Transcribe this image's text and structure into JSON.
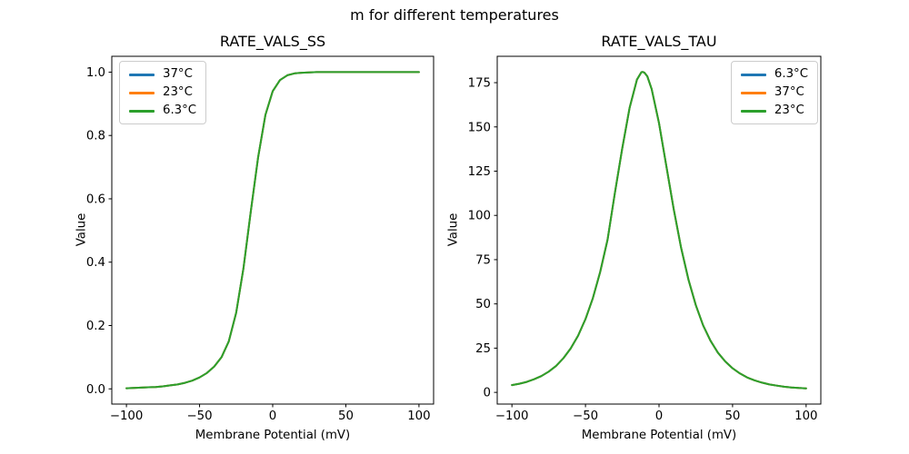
{
  "figure": {
    "suptitle": "m for different temperatures"
  },
  "chart_data": [
    {
      "type": "line",
      "title": "RATE_VALS_SS",
      "xlabel": "Membrane Potential (mV)",
      "ylabel": "Value",
      "xlim": [
        -110,
        110
      ],
      "ylim": [
        -0.048,
        1.05
      ],
      "xticks": [
        -100,
        -50,
        0,
        50,
        100
      ],
      "xtick_labels": [
        "−100",
        "−50",
        "0",
        "50",
        "100"
      ],
      "yticks": [
        0,
        0.2,
        0.4,
        0.6,
        0.8,
        1
      ],
      "ytick_labels": [
        "0.0",
        "0.2",
        "0.4",
        "0.6",
        "0.8",
        "1.0"
      ],
      "grid": false,
      "legend_position": "upper left",
      "note": "All three temperature curves coincide exactly (only the last-drawn green line is visible); shared values below.",
      "x": [
        -100,
        -95,
        -90,
        -85,
        -80,
        -75,
        -70,
        -65,
        -60,
        -55,
        -50,
        -45,
        -40,
        -35,
        -30,
        -25,
        -20,
        -15,
        -10,
        -5,
        0,
        5,
        10,
        15,
        20,
        25,
        30,
        35,
        40,
        45,
        50,
        55,
        60,
        65,
        70,
        75,
        80,
        85,
        90,
        95,
        100
      ],
      "values_shared": [
        0.002,
        0.003,
        0.004,
        0.005,
        0.006,
        0.008,
        0.011,
        0.014,
        0.019,
        0.026,
        0.036,
        0.05,
        0.07,
        0.1,
        0.15,
        0.24,
        0.38,
        0.56,
        0.73,
        0.865,
        0.94,
        0.975,
        0.99,
        0.996,
        0.998,
        0.999,
        1.0,
        1.0,
        1.0,
        1.0,
        1.0,
        1.0,
        1.0,
        1.0,
        1.0,
        1.0,
        1.0,
        1.0,
        1.0,
        1.0,
        1.0
      ],
      "series": [
        {
          "name": "37°C",
          "color": "#1f77b4"
        },
        {
          "name": "23°C",
          "color": "#ff7f0e"
        },
        {
          "name": "6.3°C",
          "color": "#2ca02c"
        }
      ]
    },
    {
      "type": "line",
      "title": "RATE_VALS_TAU",
      "xlabel": "Membrane Potential (mV)",
      "ylabel": "Value",
      "xlim": [
        -110,
        110
      ],
      "ylim": [
        -6.6,
        189.9
      ],
      "xticks": [
        -100,
        -50,
        0,
        50,
        100
      ],
      "xtick_labels": [
        "−100",
        "−50",
        "0",
        "50",
        "100"
      ],
      "yticks": [
        0,
        25,
        50,
        75,
        100,
        125,
        150,
        175
      ],
      "ytick_labels": [
        "0",
        "25",
        "50",
        "75",
        "100",
        "125",
        "150",
        "175"
      ],
      "grid": false,
      "legend_position": "upper right",
      "note": "All three temperature curves coincide exactly (only the last-drawn green line is visible); peak ≈181 at ≈−11 mV.",
      "x": [
        -100,
        -95,
        -90,
        -85,
        -80,
        -75,
        -70,
        -65,
        -60,
        -55,
        -50,
        -45,
        -40,
        -35,
        -30,
        -25,
        -20,
        -15,
        -12,
        -11,
        -10,
        -8,
        -5,
        0,
        5,
        10,
        15,
        20,
        25,
        30,
        35,
        40,
        45,
        50,
        55,
        60,
        65,
        70,
        75,
        80,
        85,
        90,
        95,
        100
      ],
      "values_shared": [
        4.1,
        4.9,
        5.9,
        7.4,
        9.2,
        11.7,
        14.9,
        19.3,
        24.9,
        32.1,
        41.4,
        53.2,
        68.1,
        86.3,
        112.9,
        137.7,
        160.7,
        176.7,
        180.9,
        181.0,
        180.7,
        178.6,
        171.4,
        152.1,
        127.7,
        103.4,
        81.7,
        63.7,
        49.2,
        37.9,
        29.2,
        22.5,
        17.5,
        13.6,
        10.7,
        8.4,
        6.8,
        5.5,
        4.5,
        3.8,
        3.2,
        2.8,
        2.5,
        2.3
      ],
      "series": [
        {
          "name": "6.3°C",
          "color": "#1f77b4"
        },
        {
          "name": "37°C",
          "color": "#ff7f0e"
        },
        {
          "name": "23°C",
          "color": "#2ca02c"
        }
      ]
    }
  ]
}
